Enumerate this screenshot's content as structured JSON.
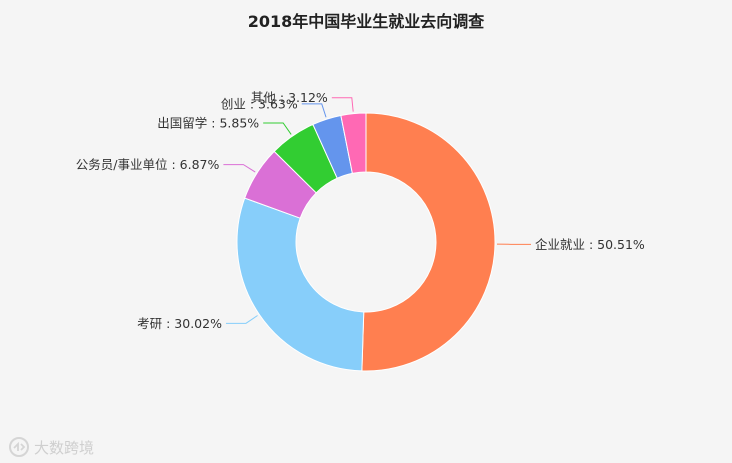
{
  "chart_data": {
    "type": "pie",
    "style": "donut",
    "title": "2018年中国毕业生就业去向调查",
    "slices": [
      {
        "name": "企业就业",
        "value": 50.51,
        "color": "#ff7f50"
      },
      {
        "name": "考研",
        "value": 30.02,
        "color": "#87cefa"
      },
      {
        "name": "公务员/事业单位",
        "value": 6.87,
        "color": "#da70d6"
      },
      {
        "name": "出国留学",
        "value": 5.85,
        "color": "#32cd32"
      },
      {
        "name": "创业",
        "value": 3.63,
        "color": "#6495ed"
      },
      {
        "name": "其他",
        "value": 3.12,
        "color": "#ff69b4"
      }
    ],
    "label_format": "{name} : {value}%",
    "legend": "none"
  },
  "watermark": {
    "text": "大数跨境"
  }
}
